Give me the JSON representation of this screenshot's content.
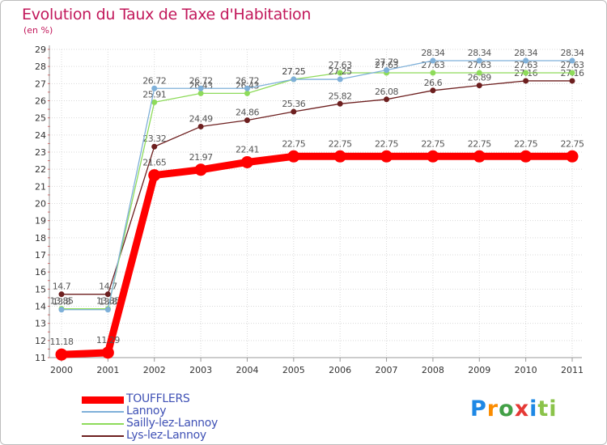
{
  "title": "Evolution du Taux de Taxe d'Habitation",
  "subtitle": "(en %)",
  "logo": "Proxiti",
  "chart_data": {
    "type": "line",
    "title": "Evolution du Taux de Taxe d'Habitation",
    "ylabel": "(en %)",
    "x": [
      "2000",
      "2001",
      "2002",
      "2003",
      "2004",
      "2005",
      "2006",
      "2007",
      "2008",
      "2009",
      "2010",
      "2011"
    ],
    "yticks": [
      "11",
      "12",
      "13",
      "14",
      "15",
      "16",
      "17",
      "18",
      "19",
      "20",
      "21",
      "22",
      "23",
      "24",
      "25",
      "26",
      "27",
      "28",
      "29"
    ],
    "ylim": [
      11,
      29
    ],
    "grid": true,
    "series": [
      {
        "name": "Lys-lez-Lannoy",
        "color": "#6d1f1f",
        "values": [
          14.7,
          14.7,
          23.32,
          24.49,
          24.86,
          25.36,
          25.82,
          26.08,
          26.6,
          26.89,
          27.16,
          27.16
        ],
        "labels": [
          "14.7",
          "14.7",
          "23.32",
          "24.49",
          "24.86",
          "25.36",
          "25.82",
          "26.08",
          "26.6",
          "26.89",
          "27.16",
          "27.16"
        ]
      },
      {
        "name": "Sailly-lez-Lannoy",
        "color": "#8edb5a",
        "values": [
          13.85,
          13.85,
          25.91,
          26.43,
          26.43,
          27.25,
          27.63,
          27.63,
          27.63,
          27.63,
          27.63,
          27.63
        ],
        "labels": [
          "13.85",
          "13.85",
          "25.91",
          "26.43",
          "26.43",
          "27.25",
          "27.63",
          "27.63",
          "27.63",
          "27.63",
          "27.63",
          "27.63"
        ]
      },
      {
        "name": "Lannoy",
        "color": "#7fb0d9",
        "values": [
          13.8,
          13.8,
          26.72,
          26.72,
          26.72,
          27.25,
          27.25,
          27.79,
          28.34,
          28.34,
          28.34,
          28.34
        ],
        "labels": [
          "13.8",
          "13.8",
          "26.72",
          "26.72",
          "26.72",
          "27.25",
          "27.25",
          "27.79",
          "28.34",
          "28.34",
          "28.34",
          "28.34"
        ]
      },
      {
        "name": "TOUFFLERS",
        "color": "#ff0000",
        "values": [
          11.18,
          11.29,
          21.65,
          21.97,
          22.41,
          22.75,
          22.75,
          22.75,
          22.75,
          22.75,
          22.75,
          22.75
        ],
        "labels": [
          "11.18",
          "11.29",
          "21.65",
          "21.97",
          "22.41",
          "22.75",
          "22.75",
          "22.75",
          "22.75",
          "22.75",
          "22.75",
          "22.75"
        ]
      }
    ]
  },
  "legend": [
    {
      "label": "TOUFFLERS",
      "color": "#ff0000"
    },
    {
      "label": "Lannoy",
      "color": "#7fb0d9"
    },
    {
      "label": "Sailly-lez-Lannoy",
      "color": "#8edb5a"
    },
    {
      "label": "Lys-lez-Lannoy",
      "color": "#6d1f1f"
    }
  ]
}
